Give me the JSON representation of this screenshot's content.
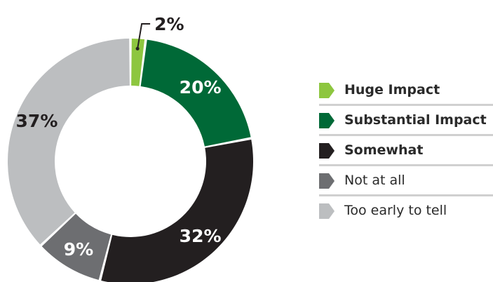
{
  "chart_data": {
    "type": "pie",
    "style": "donut",
    "slices": [
      {
        "label": "Huge Impact",
        "value": 2,
        "display": "2%",
        "color": "#8dc63f",
        "bold": true
      },
      {
        "label": "Substantial Impact",
        "value": 20,
        "display": "20%",
        "color": "#006937",
        "bold": true
      },
      {
        "label": "Somewhat",
        "value": 32,
        "display": "32%",
        "color": "#231f20",
        "bold": true
      },
      {
        "label": "Not at all",
        "value": 9,
        "display": "9%",
        "color": "#6d6e71",
        "bold": false
      },
      {
        "label": "Too early to tell",
        "value": 37,
        "display": "37%",
        "color": "#bcbec0",
        "bold": false
      }
    ],
    "legend_position": "right"
  }
}
